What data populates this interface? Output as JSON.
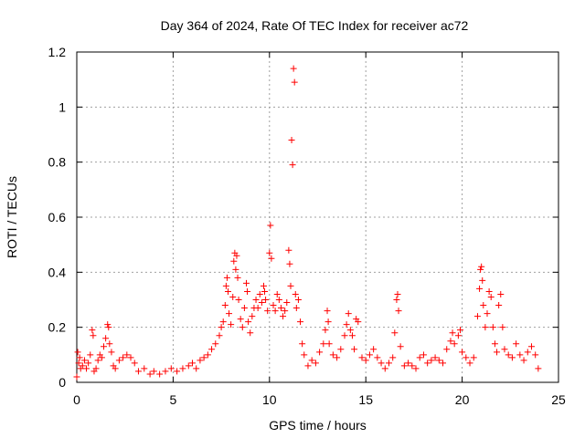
{
  "chart_data": {
    "type": "scatter",
    "title": "Day 364 of 2024, Rate Of TEC Index for receiver ac72",
    "xlabel": "GPS time / hours",
    "ylabel": "ROTI / TECUs",
    "xlim": [
      0,
      25
    ],
    "ylim": [
      0,
      1.2
    ],
    "x_ticks": [
      "0",
      "5",
      "10",
      "15",
      "20",
      "25"
    ],
    "x_tick_values": [
      0,
      5,
      10,
      15,
      20,
      25
    ],
    "y_ticks": [
      "0",
      "0.2",
      "0.4",
      "0.6",
      "0.8",
      "1",
      "1.2"
    ],
    "y_tick_values": [
      0,
      0.2,
      0.4,
      0.6,
      0.8,
      1.0,
      1.2
    ],
    "grid": true,
    "marker": "+",
    "color": "#ff0000",
    "series": [
      {
        "points": [
          [
            0.0,
            0.02
          ],
          [
            0.05,
            0.11
          ],
          [
            0.1,
            0.07
          ],
          [
            0.15,
            0.09
          ],
          [
            0.2,
            0.05
          ],
          [
            0.3,
            0.06
          ],
          [
            0.4,
            0.08
          ],
          [
            0.5,
            0.05
          ],
          [
            0.6,
            0.07
          ],
          [
            0.7,
            0.1
          ],
          [
            0.8,
            0.19
          ],
          [
            0.85,
            0.17
          ],
          [
            0.9,
            0.04
          ],
          [
            1.0,
            0.05
          ],
          [
            1.1,
            0.08
          ],
          [
            1.2,
            0.1
          ],
          [
            1.3,
            0.09
          ],
          [
            1.4,
            0.13
          ],
          [
            1.5,
            0.16
          ],
          [
            1.6,
            0.21
          ],
          [
            1.65,
            0.2
          ],
          [
            1.7,
            0.14
          ],
          [
            1.8,
            0.11
          ],
          [
            1.9,
            0.06
          ],
          [
            2.0,
            0.05
          ],
          [
            2.2,
            0.08
          ],
          [
            2.4,
            0.09
          ],
          [
            2.6,
            0.1
          ],
          [
            2.8,
            0.09
          ],
          [
            3.0,
            0.07
          ],
          [
            3.2,
            0.04
          ],
          [
            3.5,
            0.05
          ],
          [
            3.8,
            0.03
          ],
          [
            4.0,
            0.04
          ],
          [
            4.3,
            0.03
          ],
          [
            4.6,
            0.04
          ],
          [
            4.9,
            0.05
          ],
          [
            5.2,
            0.04
          ],
          [
            5.5,
            0.05
          ],
          [
            5.8,
            0.06
          ],
          [
            6.0,
            0.07
          ],
          [
            6.2,
            0.05
          ],
          [
            6.4,
            0.08
          ],
          [
            6.6,
            0.09
          ],
          [
            6.8,
            0.1
          ],
          [
            7.0,
            0.12
          ],
          [
            7.2,
            0.14
          ],
          [
            7.4,
            0.17
          ],
          [
            7.5,
            0.2
          ],
          [
            7.6,
            0.22
          ],
          [
            7.7,
            0.28
          ],
          [
            7.75,
            0.35
          ],
          [
            7.8,
            0.38
          ],
          [
            7.85,
            0.33
          ],
          [
            7.9,
            0.25
          ],
          [
            8.0,
            0.21
          ],
          [
            8.1,
            0.31
          ],
          [
            8.15,
            0.44
          ],
          [
            8.2,
            0.47
          ],
          [
            8.25,
            0.41
          ],
          [
            8.3,
            0.46
          ],
          [
            8.35,
            0.38
          ],
          [
            8.4,
            0.3
          ],
          [
            8.5,
            0.23
          ],
          [
            8.6,
            0.2
          ],
          [
            8.7,
            0.27
          ],
          [
            8.8,
            0.36
          ],
          [
            8.85,
            0.33
          ],
          [
            8.9,
            0.22
          ],
          [
            9.0,
            0.18
          ],
          [
            9.1,
            0.24
          ],
          [
            9.2,
            0.27
          ],
          [
            9.3,
            0.3
          ],
          [
            9.4,
            0.27
          ],
          [
            9.5,
            0.32
          ],
          [
            9.6,
            0.29
          ],
          [
            9.7,
            0.35
          ],
          [
            9.75,
            0.33
          ],
          [
            9.8,
            0.3
          ],
          [
            9.9,
            0.26
          ],
          [
            10.0,
            0.47
          ],
          [
            10.05,
            0.57
          ],
          [
            10.1,
            0.45
          ],
          [
            10.2,
            0.28
          ],
          [
            10.3,
            0.26
          ],
          [
            10.4,
            0.32
          ],
          [
            10.5,
            0.3
          ],
          [
            10.6,
            0.27
          ],
          [
            10.7,
            0.24
          ],
          [
            10.8,
            0.26
          ],
          [
            10.9,
            0.29
          ],
          [
            11.0,
            0.48
          ],
          [
            11.05,
            0.43
          ],
          [
            11.1,
            0.35
          ],
          [
            11.15,
            0.88
          ],
          [
            11.2,
            0.79
          ],
          [
            11.25,
            1.14
          ],
          [
            11.3,
            1.09
          ],
          [
            11.35,
            0.32
          ],
          [
            11.4,
            0.27
          ],
          [
            11.5,
            0.3
          ],
          [
            11.6,
            0.22
          ],
          [
            11.7,
            0.14
          ],
          [
            11.8,
            0.1
          ],
          [
            12.0,
            0.06
          ],
          [
            12.2,
            0.08
          ],
          [
            12.4,
            0.07
          ],
          [
            12.6,
            0.11
          ],
          [
            12.8,
            0.14
          ],
          [
            12.9,
            0.19
          ],
          [
            13.0,
            0.26
          ],
          [
            13.05,
            0.22
          ],
          [
            13.1,
            0.14
          ],
          [
            13.3,
            0.1
          ],
          [
            13.5,
            0.09
          ],
          [
            13.7,
            0.12
          ],
          [
            13.9,
            0.17
          ],
          [
            14.0,
            0.21
          ],
          [
            14.1,
            0.25
          ],
          [
            14.2,
            0.19
          ],
          [
            14.3,
            0.17
          ],
          [
            14.4,
            0.12
          ],
          [
            14.5,
            0.23
          ],
          [
            14.6,
            0.22
          ],
          [
            14.8,
            0.09
          ],
          [
            15.0,
            0.08
          ],
          [
            15.2,
            0.1
          ],
          [
            15.4,
            0.12
          ],
          [
            15.6,
            0.09
          ],
          [
            15.8,
            0.07
          ],
          [
            16.0,
            0.05
          ],
          [
            16.2,
            0.07
          ],
          [
            16.4,
            0.09
          ],
          [
            16.5,
            0.18
          ],
          [
            16.6,
            0.3
          ],
          [
            16.65,
            0.32
          ],
          [
            16.7,
            0.26
          ],
          [
            16.8,
            0.13
          ],
          [
            17.0,
            0.06
          ],
          [
            17.2,
            0.07
          ],
          [
            17.4,
            0.06
          ],
          [
            17.6,
            0.05
          ],
          [
            17.8,
            0.09
          ],
          [
            18.0,
            0.1
          ],
          [
            18.2,
            0.07
          ],
          [
            18.4,
            0.08
          ],
          [
            18.6,
            0.09
          ],
          [
            18.8,
            0.08
          ],
          [
            19.0,
            0.07
          ],
          [
            19.2,
            0.12
          ],
          [
            19.4,
            0.15
          ],
          [
            19.5,
            0.18
          ],
          [
            19.6,
            0.14
          ],
          [
            19.8,
            0.17
          ],
          [
            19.9,
            0.19
          ],
          [
            20.0,
            0.11
          ],
          [
            20.2,
            0.09
          ],
          [
            20.4,
            0.07
          ],
          [
            20.6,
            0.09
          ],
          [
            20.8,
            0.24
          ],
          [
            20.9,
            0.34
          ],
          [
            20.95,
            0.41
          ],
          [
            21.0,
            0.42
          ],
          [
            21.05,
            0.37
          ],
          [
            21.1,
            0.28
          ],
          [
            21.2,
            0.2
          ],
          [
            21.3,
            0.25
          ],
          [
            21.4,
            0.33
          ],
          [
            21.5,
            0.31
          ],
          [
            21.6,
            0.2
          ],
          [
            21.7,
            0.14
          ],
          [
            21.8,
            0.11
          ],
          [
            21.9,
            0.28
          ],
          [
            22.0,
            0.32
          ],
          [
            22.1,
            0.2
          ],
          [
            22.2,
            0.12
          ],
          [
            22.4,
            0.1
          ],
          [
            22.6,
            0.09
          ],
          [
            22.8,
            0.14
          ],
          [
            23.0,
            0.1
          ],
          [
            23.2,
            0.08
          ],
          [
            23.4,
            0.11
          ],
          [
            23.6,
            0.13
          ],
          [
            23.8,
            0.1
          ],
          [
            23.95,
            0.05
          ]
        ]
      }
    ]
  }
}
